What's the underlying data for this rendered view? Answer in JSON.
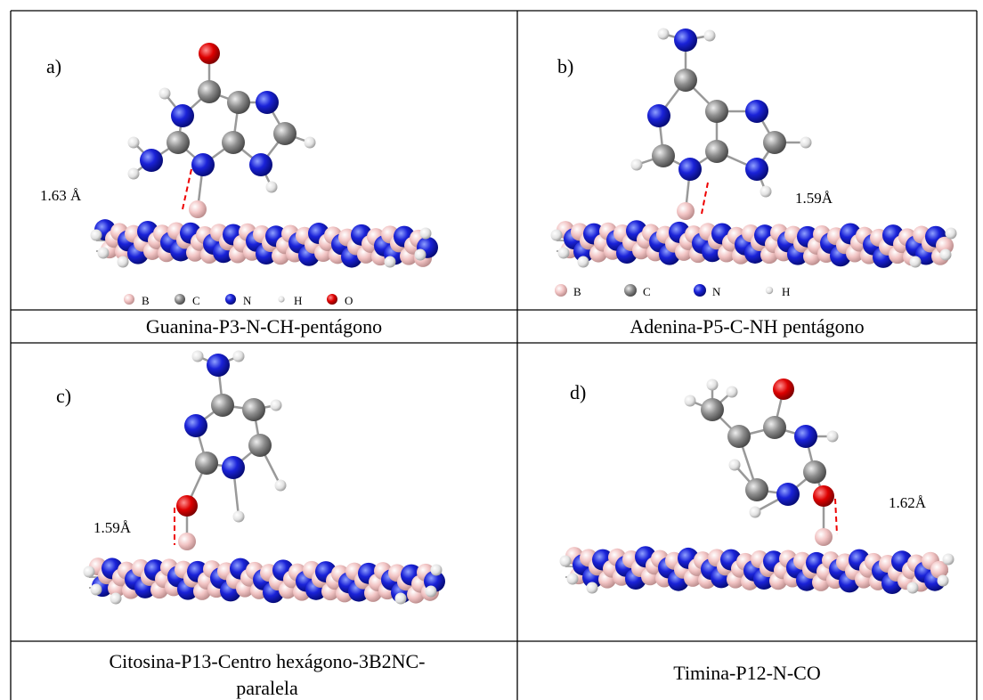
{
  "panels": [
    {
      "label": "a)",
      "distance": "1.63 Å",
      "legend": [
        "B",
        "C",
        "N",
        "H",
        "O"
      ],
      "caption": "Guanina-P3-N-CH-pentágono"
    },
    {
      "label": "b)",
      "distance": "1.59Å",
      "legend": [
        "B",
        "C",
        "N",
        "H"
      ],
      "caption": "Adenina-P5-C-NH pentágono"
    },
    {
      "label": "c)",
      "distance": "1.59Å",
      "caption": "Citosina-P13-Centro hexágono-3B2NC-paralela"
    },
    {
      "label": "d)",
      "distance": "1.62Å",
      "caption": "Timina-P12-N-CO"
    }
  ]
}
